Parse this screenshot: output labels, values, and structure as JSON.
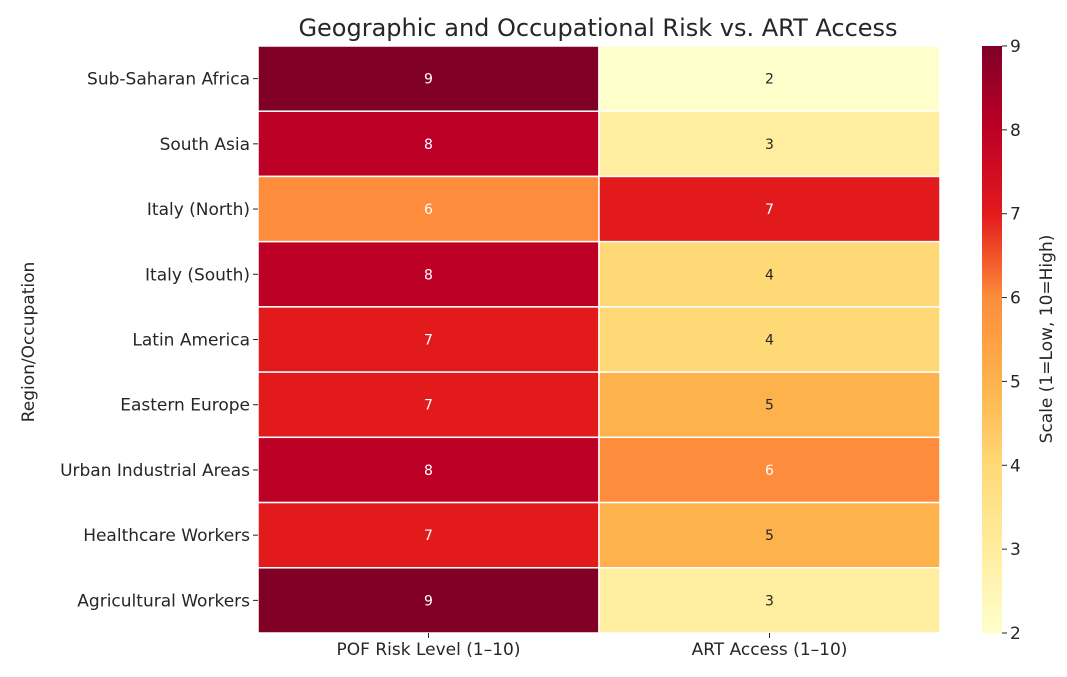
{
  "chart_data": {
    "type": "heatmap",
    "title": "Geographic and Occupational Risk vs. ART Access",
    "xlabel": "",
    "ylabel": "Region/Occupation",
    "columns": [
      "POF Risk Level (1–10)",
      "ART Access (1–10)"
    ],
    "rows": [
      "Sub-Saharan Africa",
      "South Asia",
      "Italy (North)",
      "Italy (South)",
      "Latin America",
      "Eastern Europe",
      "Urban Industrial Areas",
      "Healthcare Workers",
      "Agricultural Workers"
    ],
    "values": [
      [
        9,
        2
      ],
      [
        8,
        3
      ],
      [
        6,
        7
      ],
      [
        8,
        4
      ],
      [
        7,
        4
      ],
      [
        7,
        5
      ],
      [
        8,
        6
      ],
      [
        7,
        5
      ],
      [
        9,
        3
      ]
    ],
    "colorbar": {
      "label": "Scale (1=Low, 10=High)",
      "range": [
        2,
        9
      ],
      "ticks": [
        2,
        3,
        4,
        5,
        6,
        7,
        8,
        9
      ],
      "colormap": "YlOrRd"
    },
    "colors": {
      "2": "#ffffcc",
      "3": "#ffeda0",
      "4": "#fed976",
      "5": "#feb24c",
      "6": "#fd8d3c",
      "7": "#e31a1c",
      "8": "#bd0026",
      "9": "#800026"
    }
  }
}
